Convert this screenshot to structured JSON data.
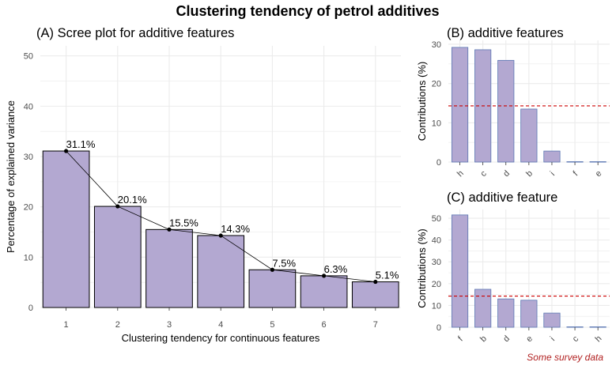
{
  "title": "Clustering tendency of petrol additives",
  "caption": "Some survey data",
  "colors": {
    "bar": "#b3a8d1",
    "bar_edge_A": "#000000",
    "bar_edge_side": "#5b77b3",
    "ref_line": "#cc0000",
    "grid": "#ebebeb"
  },
  "chart_data": [
    {
      "id": "A",
      "type": "bar",
      "title": "(A) Scree plot for additive features",
      "xlabel": "Clustering tendency for continuous features",
      "ylabel": "Percentage of explained variance",
      "categories": [
        "1",
        "2",
        "3",
        "4",
        "5",
        "6",
        "7"
      ],
      "values": [
        31.1,
        20.1,
        15.5,
        14.3,
        7.5,
        6.3,
        5.1
      ],
      "labels": [
        "31.1%",
        "20.1%",
        "15.5%",
        "14.3%",
        "7.5%",
        "6.3%",
        "5.1%"
      ],
      "line_overlay": true,
      "ylim": [
        0,
        52
      ],
      "yticks": [
        0,
        10,
        20,
        30,
        40,
        50
      ]
    },
    {
      "id": "B",
      "type": "bar",
      "title": "(B) additive features",
      "xlabel": "",
      "ylabel": "Contributions (%)",
      "categories": [
        "h",
        "c",
        "d",
        "b",
        "i",
        "f",
        "e"
      ],
      "values": [
        29.2,
        28.6,
        25.9,
        13.5,
        2.8,
        0.1,
        0.1
      ],
      "reference_line": 14.3,
      "ylim": [
        0,
        31
      ],
      "yticks": [
        0,
        10,
        20,
        30
      ]
    },
    {
      "id": "C",
      "type": "bar",
      "title": "(C) additive feature",
      "xlabel": "",
      "ylabel": "Contributions (%)",
      "categories": [
        "f",
        "b",
        "d",
        "e",
        "i",
        "c",
        "h"
      ],
      "values": [
        51.5,
        17.4,
        13.0,
        12.4,
        6.5,
        0.2,
        0.2
      ],
      "reference_line": 14.3,
      "ylim": [
        0,
        54
      ],
      "yticks": [
        0,
        10,
        20,
        30,
        40,
        50
      ]
    }
  ]
}
